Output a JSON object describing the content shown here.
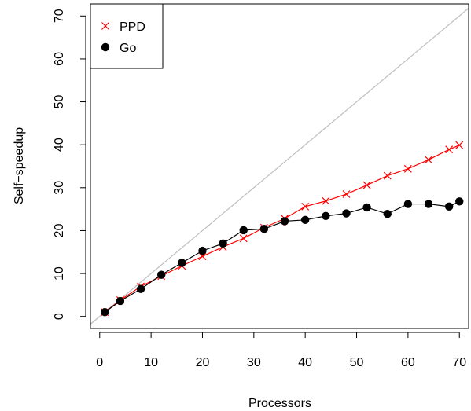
{
  "chart_data": {
    "type": "line",
    "title": "",
    "xlabel": "Processors",
    "ylabel": "Self−speedup",
    "xlim": [
      -1.8,
      71.8
    ],
    "ylim": [
      -2.8,
      72.8
    ],
    "x_ticks": [
      0,
      10,
      20,
      30,
      40,
      50,
      60,
      70
    ],
    "y_ticks": [
      0,
      10,
      20,
      30,
      40,
      50,
      60,
      70
    ],
    "x_tick_labels": [
      "0",
      "10",
      "20",
      "30",
      "40",
      "50",
      "60",
      "70"
    ],
    "y_tick_labels": [
      "0",
      "10",
      "20",
      "30",
      "40",
      "50",
      "60",
      "70"
    ],
    "grid": false,
    "legend_position": "top-left",
    "reference_line": {
      "type": "identity",
      "color": "#bebebe"
    },
    "series": [
      {
        "name": "PPD",
        "color": "#ff0000",
        "marker": "cross",
        "x": [
          1,
          4,
          8,
          12,
          16,
          20,
          24,
          28,
          32,
          36,
          40,
          44,
          48,
          52,
          56,
          60,
          64,
          68,
          70
        ],
        "y": [
          1.0,
          3.8,
          7.0,
          9.4,
          11.8,
          14.0,
          16.2,
          18.2,
          20.7,
          22.8,
          25.6,
          26.9,
          28.5,
          30.6,
          32.8,
          34.4,
          36.5,
          38.9,
          39.9
        ]
      },
      {
        "name": "Go",
        "color": "#000000",
        "marker": "filled-circle",
        "x": [
          1,
          4,
          8,
          12,
          16,
          20,
          24,
          28,
          32,
          36,
          40,
          44,
          48,
          52,
          56,
          60,
          64,
          68,
          70
        ],
        "y": [
          1.0,
          3.6,
          6.4,
          9.7,
          12.5,
          15.3,
          17.0,
          20.1,
          20.4,
          22.2,
          22.5,
          23.4,
          24.0,
          25.4,
          23.9,
          26.2,
          26.2,
          25.6,
          26.8
        ]
      }
    ]
  }
}
